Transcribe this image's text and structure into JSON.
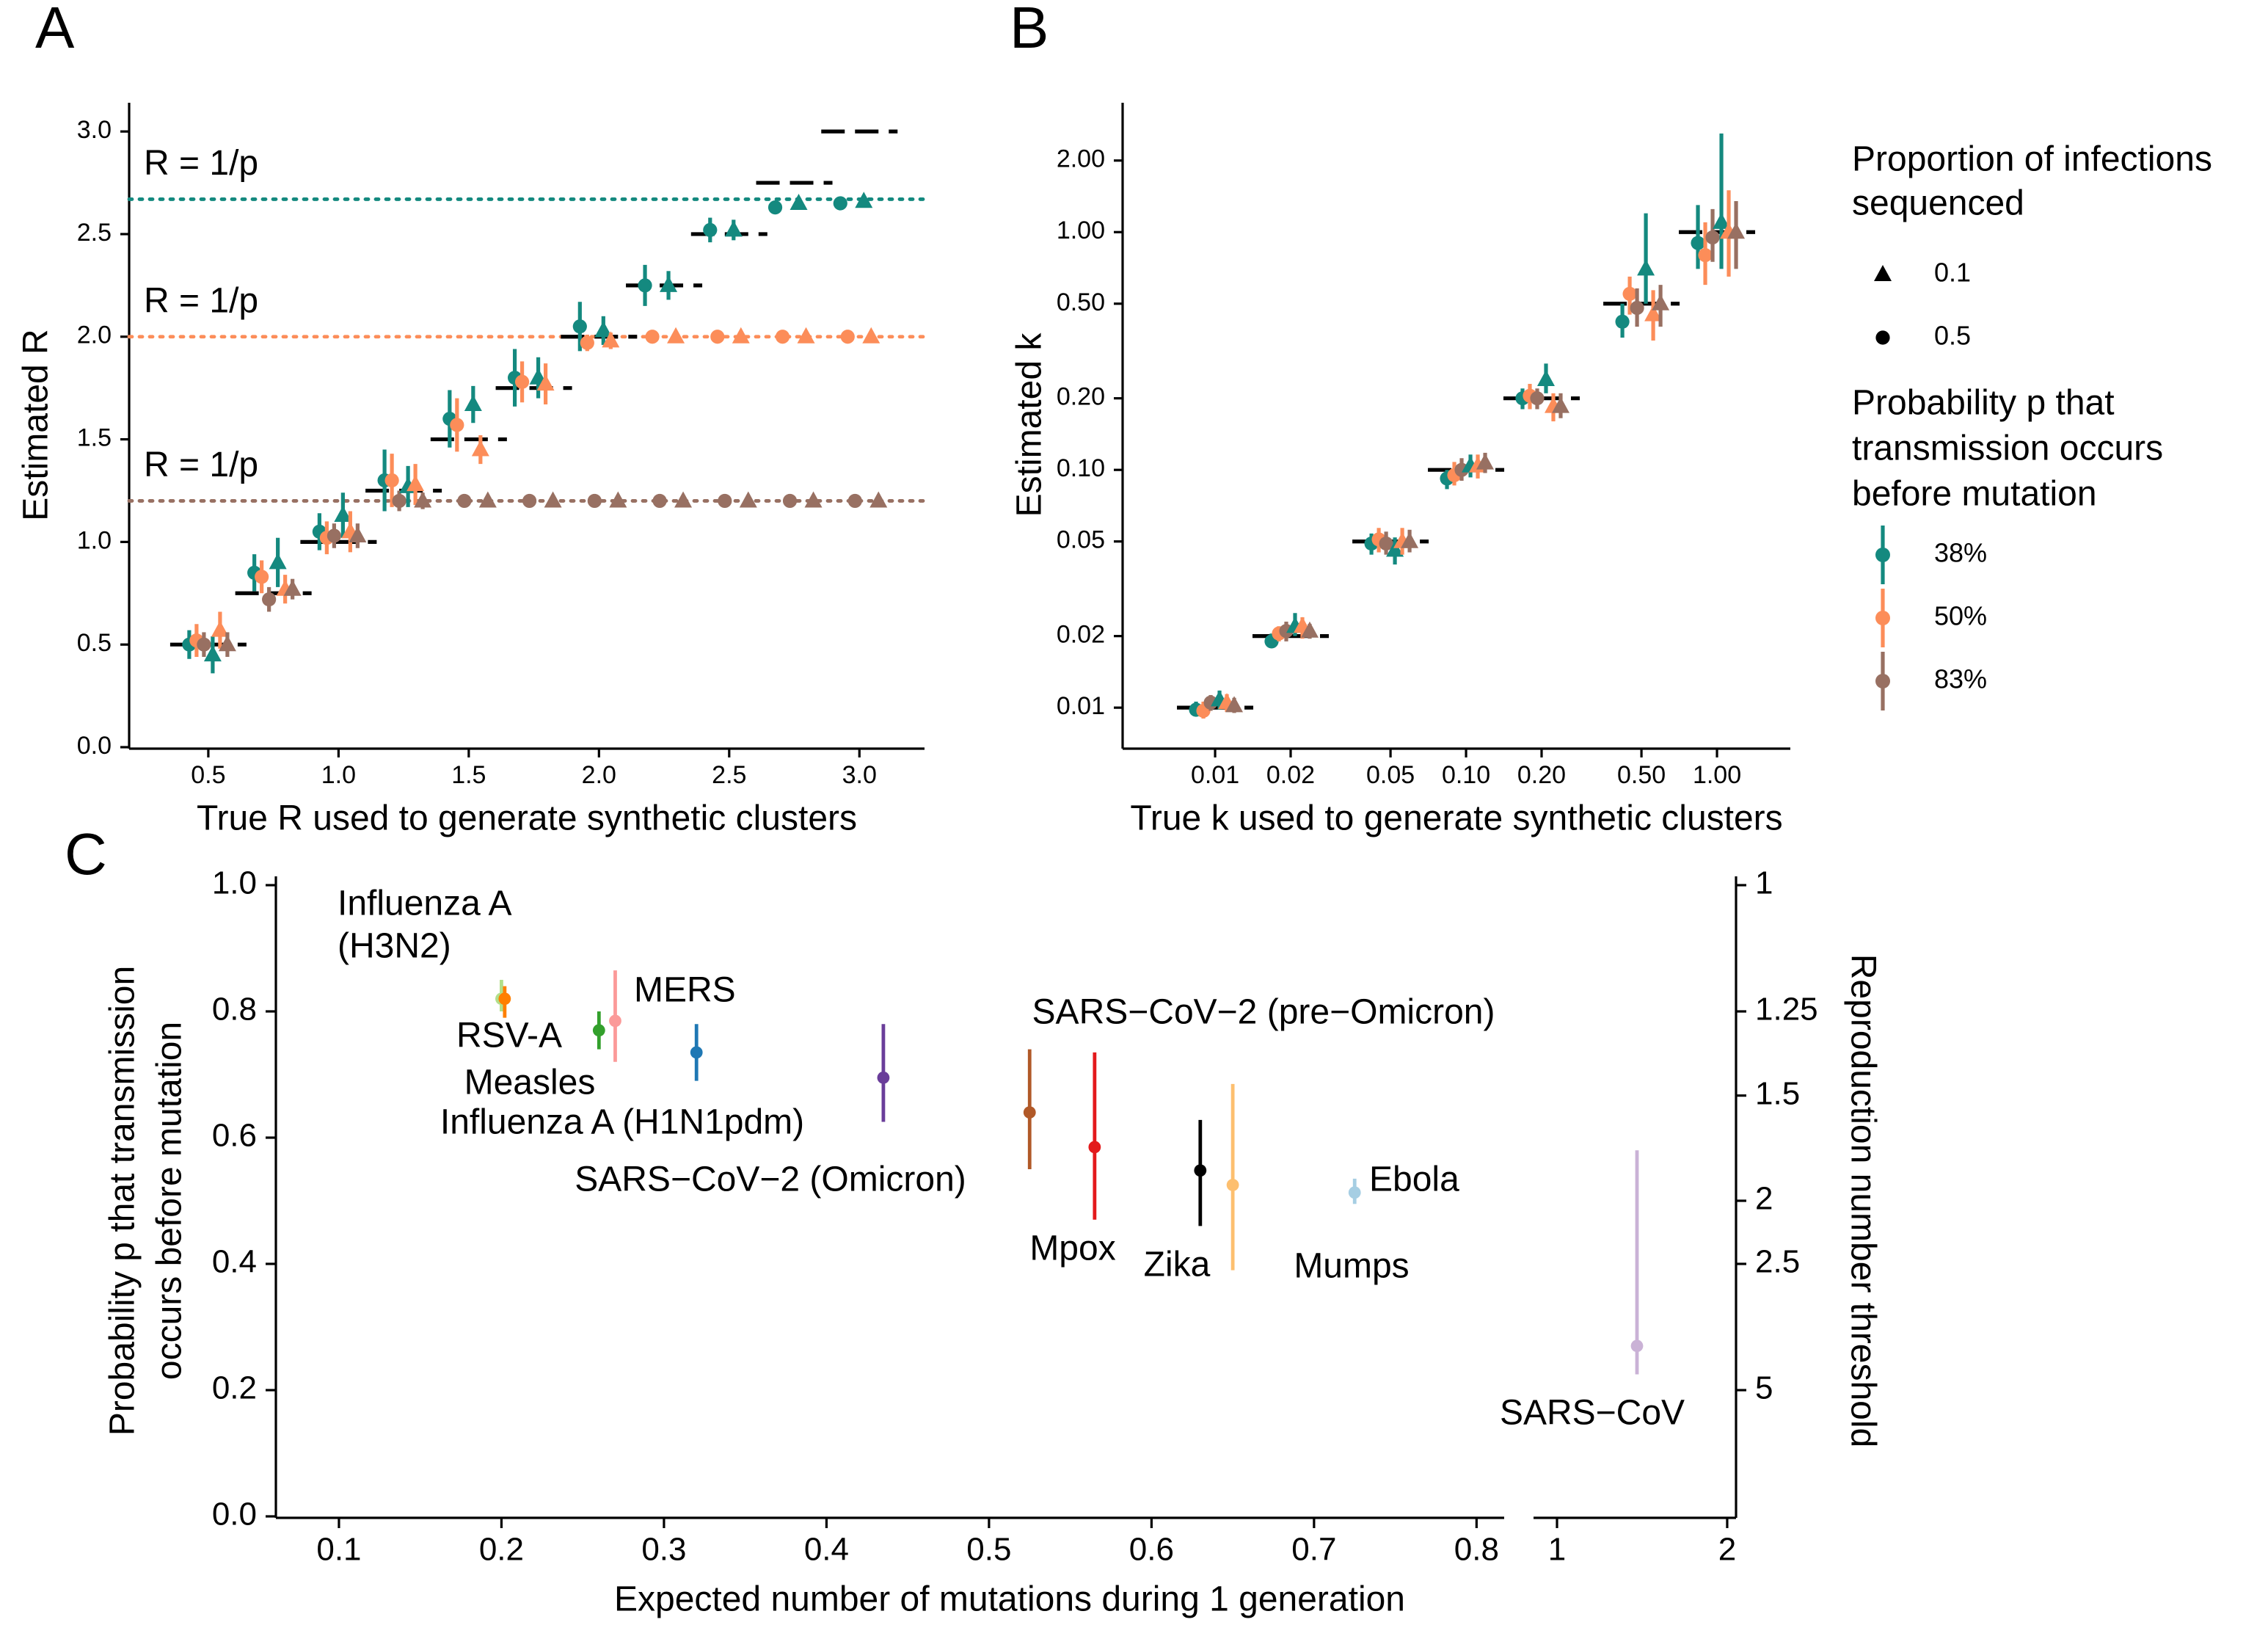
{
  "chart_data": [
    {
      "type": "scatter",
      "panel_label": "A",
      "xlabel": "True R used to generate synthetic clusters",
      "ylabel": "Estimated R",
      "x": [
        0.5,
        0.75,
        1.0,
        1.25,
        1.5,
        1.75,
        2.0,
        2.25,
        2.5,
        2.75,
        3.0
      ],
      "xlim": [
        0.196,
        3.25
      ],
      "ylim": [
        0,
        3.14
      ],
      "xticks": [
        0.5,
        {
          "value": 1,
          "label": "1.0"
        },
        1.5,
        {
          "value": 2,
          "label": "2.0"
        },
        2.5,
        {
          "value": 3,
          "label": "3.0"
        }
      ],
      "yticks": [
        {
          "value": 0,
          "label": "0.0"
        },
        0.5,
        {
          "value": 1,
          "label": "1.0"
        },
        1.5,
        {
          "value": 2,
          "label": "2.0"
        },
        2.5,
        {
          "value": 3,
          "label": "3.0"
        }
      ],
      "reference_lines": [
        {
          "value": 2.67,
          "label": "R = 1/p",
          "color": "#14897f"
        },
        {
          "value": 2.0,
          "label": "R = 1/p",
          "color": "#fc8d59"
        },
        {
          "value": 1.2,
          "label": "R = 1/p",
          "color": "#987062"
        }
      ],
      "series": [
        {
          "color": "#14897f",
          "shape": "circle",
          "values": [
            0.5,
            0.85,
            1.05,
            1.3,
            1.6,
            1.8,
            2.05,
            2.25,
            2.52,
            2.63,
            2.65
          ],
          "errors": [
            0.07,
            0.09,
            0.09,
            0.15,
            0.14,
            0.14,
            0.12,
            0.1,
            0.06,
            0.03,
            0.02
          ]
        },
        {
          "color": "#fc8d59",
          "shape": "circle",
          "values": [
            0.52,
            0.83,
            1.02,
            1.3,
            1.57,
            1.78,
            1.97,
            2.0,
            2.0,
            2.0,
            2.0
          ],
          "errors": [
            0.08,
            0.08,
            0.08,
            0.13,
            0.13,
            0.1,
            0.04,
            0.01,
            0.01,
            0.01,
            0.01
          ]
        },
        {
          "color": "#987062",
          "shape": "circle",
          "values": [
            0.5,
            0.72,
            1.03,
            1.2,
            1.2,
            1.2,
            1.2,
            1.2,
            1.2,
            1.2,
            1.2
          ],
          "errors": [
            0.06,
            0.06,
            0.06,
            0.05,
            0.01,
            0.01,
            0.01,
            0.01,
            0.01,
            0.01,
            0.01
          ]
        },
        {
          "color": "#14897f",
          "shape": "triangle",
          "values": [
            0.45,
            0.9,
            1.13,
            1.27,
            1.67,
            1.8,
            2.03,
            2.25,
            2.52,
            2.65,
            2.66
          ],
          "errors": [
            0.09,
            0.12,
            0.11,
            0.1,
            0.09,
            0.1,
            0.07,
            0.07,
            0.05,
            0.03,
            0.02
          ]
        },
        {
          "color": "#fc8d59",
          "shape": "triangle",
          "values": [
            0.57,
            0.77,
            1.05,
            1.28,
            1.45,
            1.77,
            1.98,
            2.0,
            2.0,
            2.0,
            2.0
          ],
          "errors": [
            0.09,
            0.07,
            0.1,
            0.1,
            0.07,
            0.1,
            0.04,
            0.01,
            0.01,
            0.01,
            0.01
          ]
        },
        {
          "color": "#987062",
          "shape": "triangle",
          "values": [
            0.5,
            0.77,
            1.03,
            1.2,
            1.2,
            1.2,
            1.2,
            1.2,
            1.2,
            1.2,
            1.2
          ],
          "errors": [
            0.06,
            0.05,
            0.06,
            0.04,
            0.01,
            0.01,
            0.01,
            0.01,
            0.01,
            0.01,
            0.01
          ]
        }
      ]
    },
    {
      "type": "scatter",
      "panel_label": "B",
      "xlabel": "True k used to generate synthetic clusters",
      "ylabel": "Estimated k",
      "log_x": true,
      "log_y": true,
      "x": [
        0.01,
        0.02,
        0.05,
        0.1,
        0.2,
        0.5,
        1.0
      ],
      "xlim": [
        0.00428,
        1.96
      ],
      "ylim": [
        0.00682,
        3.5
      ],
      "xticks": [
        0.01,
        0.02,
        0.05,
        {
          "value": 0.1,
          "label": "0.10"
        },
        {
          "value": 0.2,
          "label": "0.20"
        },
        {
          "value": 0.5,
          "label": "0.50"
        },
        {
          "value": 1,
          "label": "1.00"
        }
      ],
      "yticks": [
        0.01,
        0.02,
        0.05,
        {
          "value": 0.1,
          "label": "0.10"
        },
        {
          "value": 0.2,
          "label": "0.20"
        },
        {
          "value": 0.5,
          "label": "0.50"
        },
        {
          "value": 1,
          "label": "1.00"
        },
        {
          "value": 2,
          "label": "2.00"
        }
      ],
      "series": [
        {
          "color": "#14897f",
          "shape": "circle",
          "values": [
            0.0098,
            0.019,
            0.049,
            0.092,
            0.2,
            0.42,
            0.9
          ],
          "lower": [
            0.0092,
            0.018,
            0.044,
            0.083,
            0.18,
            0.36,
            0.7
          ],
          "upper": [
            0.0106,
            0.0205,
            0.054,
            0.1,
            0.22,
            0.5,
            1.3
          ]
        },
        {
          "color": "#fc8d59",
          "shape": "circle",
          "values": [
            0.0097,
            0.0205,
            0.051,
            0.095,
            0.205,
            0.55,
            0.8
          ],
          "lower": [
            0.009,
            0.019,
            0.045,
            0.086,
            0.18,
            0.45,
            0.6
          ],
          "upper": [
            0.0106,
            0.022,
            0.057,
            0.108,
            0.23,
            0.65,
            1.1
          ]
        },
        {
          "color": "#987062",
          "shape": "circle",
          "values": [
            0.0105,
            0.021,
            0.049,
            0.1,
            0.2,
            0.48,
            0.95
          ],
          "lower": [
            0.0097,
            0.019,
            0.044,
            0.09,
            0.18,
            0.4,
            0.75
          ],
          "upper": [
            0.0113,
            0.023,
            0.055,
            0.112,
            0.22,
            0.58,
            1.25
          ]
        },
        {
          "color": "#14897f",
          "shape": "triangle",
          "values": [
            0.0108,
            0.022,
            0.046,
            0.104,
            0.24,
            0.7,
            1.1
          ],
          "lower": [
            0.0098,
            0.02,
            0.04,
            0.093,
            0.21,
            0.5,
            0.7
          ],
          "upper": [
            0.0118,
            0.025,
            0.052,
            0.116,
            0.28,
            1.2,
            2.6
          ]
        },
        {
          "color": "#fc8d59",
          "shape": "triangle",
          "values": [
            0.0105,
            0.022,
            0.05,
            0.104,
            0.185,
            0.45,
            1.0
          ],
          "lower": [
            0.0096,
            0.0195,
            0.044,
            0.092,
            0.16,
            0.35,
            0.65
          ],
          "upper": [
            0.0114,
            0.024,
            0.057,
            0.116,
            0.21,
            0.57,
            1.5
          ]
        },
        {
          "color": "#987062",
          "shape": "triangle",
          "values": [
            0.0102,
            0.021,
            0.05,
            0.107,
            0.185,
            0.5,
            1.0
          ],
          "lower": [
            0.0095,
            0.0195,
            0.045,
            0.097,
            0.165,
            0.4,
            0.7
          ],
          "upper": [
            0.011,
            0.0225,
            0.056,
            0.118,
            0.21,
            0.6,
            1.35
          ]
        }
      ],
      "legend": {
        "shape_title": [
          "Proportion of infections",
          "sequenced"
        ],
        "shapes": [
          {
            "label": "0.1",
            "shape": "triangle"
          },
          {
            "label": "0.5",
            "shape": "circle"
          }
        ],
        "color_title": [
          "Probability p that",
          "transmission occurs",
          "before mutation"
        ],
        "colors": [
          {
            "label": "38%",
            "color": "#14897f"
          },
          {
            "label": "50%",
            "color": "#fc8d59"
          },
          {
            "label": "83%",
            "color": "#987062"
          }
        ]
      }
    },
    {
      "type": "scatter",
      "panel_label": "C",
      "xlabel": "Expected number of mutations during 1 generation",
      "ylabel": [
        "Probability p that transmission",
        "occurs before mutation"
      ],
      "y2label": "Reproduction number threshold",
      "ylim": [
        0,
        1
      ],
      "yticks": [
        {
          "value": 0,
          "label": "0.0"
        },
        0.2,
        0.4,
        0.6,
        0.8,
        {
          "value": 1,
          "label": "1.0"
        }
      ],
      "y2ticks": [
        1,
        1.25,
        1.5,
        2,
        2.5,
        5
      ],
      "y2_scale": "reciprocal",
      "x_segments": [
        {
          "lim": [
            0.0612,
            0.817
          ],
          "ticks": [
            0.1,
            0.2,
            0.3,
            0.4,
            0.5,
            0.6,
            0.7,
            0.8
          ]
        },
        {
          "lim": [
            0.862,
            2.052
          ],
          "ticks": [
            1,
            2
          ]
        }
      ],
      "points": [
        {
          "label": [
            "Influenza A",
            "(H3N2)"
          ],
          "color": "#b2df8a",
          "x": 0.2,
          "y": 0.82,
          "lower": 0.8,
          "upper": 0.85
        },
        {
          "label": [
            "RSV-A"
          ],
          "color": "#ff7f00",
          "x": 0.202,
          "y": 0.82,
          "lower": 0.79,
          "upper": 0.84
        },
        {
          "label": [
            "Measles"
          ],
          "color": "#33a02c",
          "x": 0.26,
          "y": 0.77,
          "lower": 0.74,
          "upper": 0.8
        },
        {
          "label": [
            "MERS"
          ],
          "color": "#fb9a99",
          "x": 0.27,
          "y": 0.785,
          "lower": 0.72,
          "upper": 0.865
        },
        {
          "label": [
            "Influenza A (H1N1pdm)"
          ],
          "color": "#1f78b4",
          "x": 0.32,
          "y": 0.735,
          "lower": 0.69,
          "upper": 0.78
        },
        {
          "label": [
            "SARS−CoV−2 (Omicron)"
          ],
          "color": "#6a3d9a",
          "x": 0.435,
          "y": 0.695,
          "lower": 0.625,
          "upper": 0.78
        },
        {
          "label": [
            "SARS−CoV−2 (pre−Omicron)"
          ],
          "color": "#b15928",
          "x": 0.525,
          "y": 0.64,
          "lower": 0.55,
          "upper": 0.74
        },
        {
          "label": [
            "Mpox"
          ],
          "color": "#e31a1c",
          "x": 0.565,
          "y": 0.585,
          "lower": 0.47,
          "upper": 0.735
        },
        {
          "label": [
            "Zika"
          ],
          "color": "#000000",
          "x": 0.63,
          "y": 0.548,
          "lower": 0.46,
          "upper": 0.628
        },
        {
          "label": [
            "Mumps"
          ],
          "color": "#fdbf6f",
          "x": 0.65,
          "y": 0.525,
          "lower": 0.39,
          "upper": 0.685
        },
        {
          "label": [
            "Ebola"
          ],
          "color": "#a6cee3",
          "x": 0.725,
          "y": 0.513,
          "lower": 0.495,
          "upper": 0.535
        },
        {
          "label": [
            "SARS−CoV"
          ],
          "color": "#cab2d6",
          "x": 1.47,
          "y": 0.27,
          "lower": 0.225,
          "upper": 0.58
        }
      ]
    }
  ]
}
